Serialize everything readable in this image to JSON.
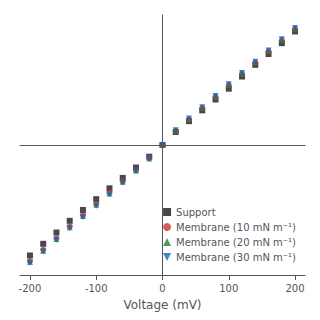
{
  "chart_data": {
    "type": "scatter",
    "x": [
      -200,
      -180,
      -160,
      -140,
      -120,
      -100,
      -80,
      -60,
      -40,
      -20,
      0,
      20,
      40,
      60,
      80,
      100,
      120,
      140,
      160,
      180,
      200
    ],
    "series": [
      {
        "name": "Support",
        "color": "#1a1a1a",
        "marker": "square",
        "values": [
          -2.55,
          -2.28,
          -2.02,
          -1.75,
          -1.5,
          -1.25,
          -1.0,
          -0.76,
          -0.52,
          -0.27,
          0.0,
          0.3,
          0.55,
          0.8,
          1.05,
          1.3,
          1.58,
          1.85,
          2.1,
          2.35,
          2.62
        ]
      },
      {
        "name": "Membrane (10 mN m⁻¹)",
        "color": "#d32f2f",
        "marker": "circle",
        "values": [
          -2.68,
          -2.42,
          -2.15,
          -1.88,
          -1.62,
          -1.36,
          -1.1,
          -0.84,
          -0.58,
          -0.3,
          0.0,
          0.32,
          0.59,
          0.85,
          1.11,
          1.38,
          1.64,
          1.9,
          2.16,
          2.42,
          2.68
        ]
      },
      {
        "name": "Membrane (20 mN m⁻¹)",
        "color": "#2e7d32",
        "marker": "triangle_up",
        "values": [
          -2.7,
          -2.44,
          -2.17,
          -1.9,
          -1.64,
          -1.38,
          -1.12,
          -0.85,
          -0.59,
          -0.31,
          0.0,
          0.33,
          0.6,
          0.86,
          1.12,
          1.39,
          1.65,
          1.91,
          2.17,
          2.43,
          2.69
        ]
      },
      {
        "name": "Membrane (30 mN m⁻¹)",
        "color": "#1565c0",
        "marker": "triangle_down",
        "values": [
          -2.72,
          -2.46,
          -2.19,
          -1.92,
          -1.66,
          -1.4,
          -1.14,
          -0.87,
          -0.6,
          -0.32,
          0.0,
          0.34,
          0.61,
          0.87,
          1.13,
          1.4,
          1.66,
          1.92,
          2.18,
          2.44,
          2.7
        ]
      }
    ],
    "xlabel": "Voltage (mV)",
    "xlim": [
      -215,
      215
    ],
    "ylim": [
      -3.0,
      3.0
    ],
    "xticks": [
      -200,
      -100,
      0,
      100,
      200
    ],
    "yticks": [],
    "tick_labels": "x",
    "grid": false,
    "legend": "lower right"
  }
}
